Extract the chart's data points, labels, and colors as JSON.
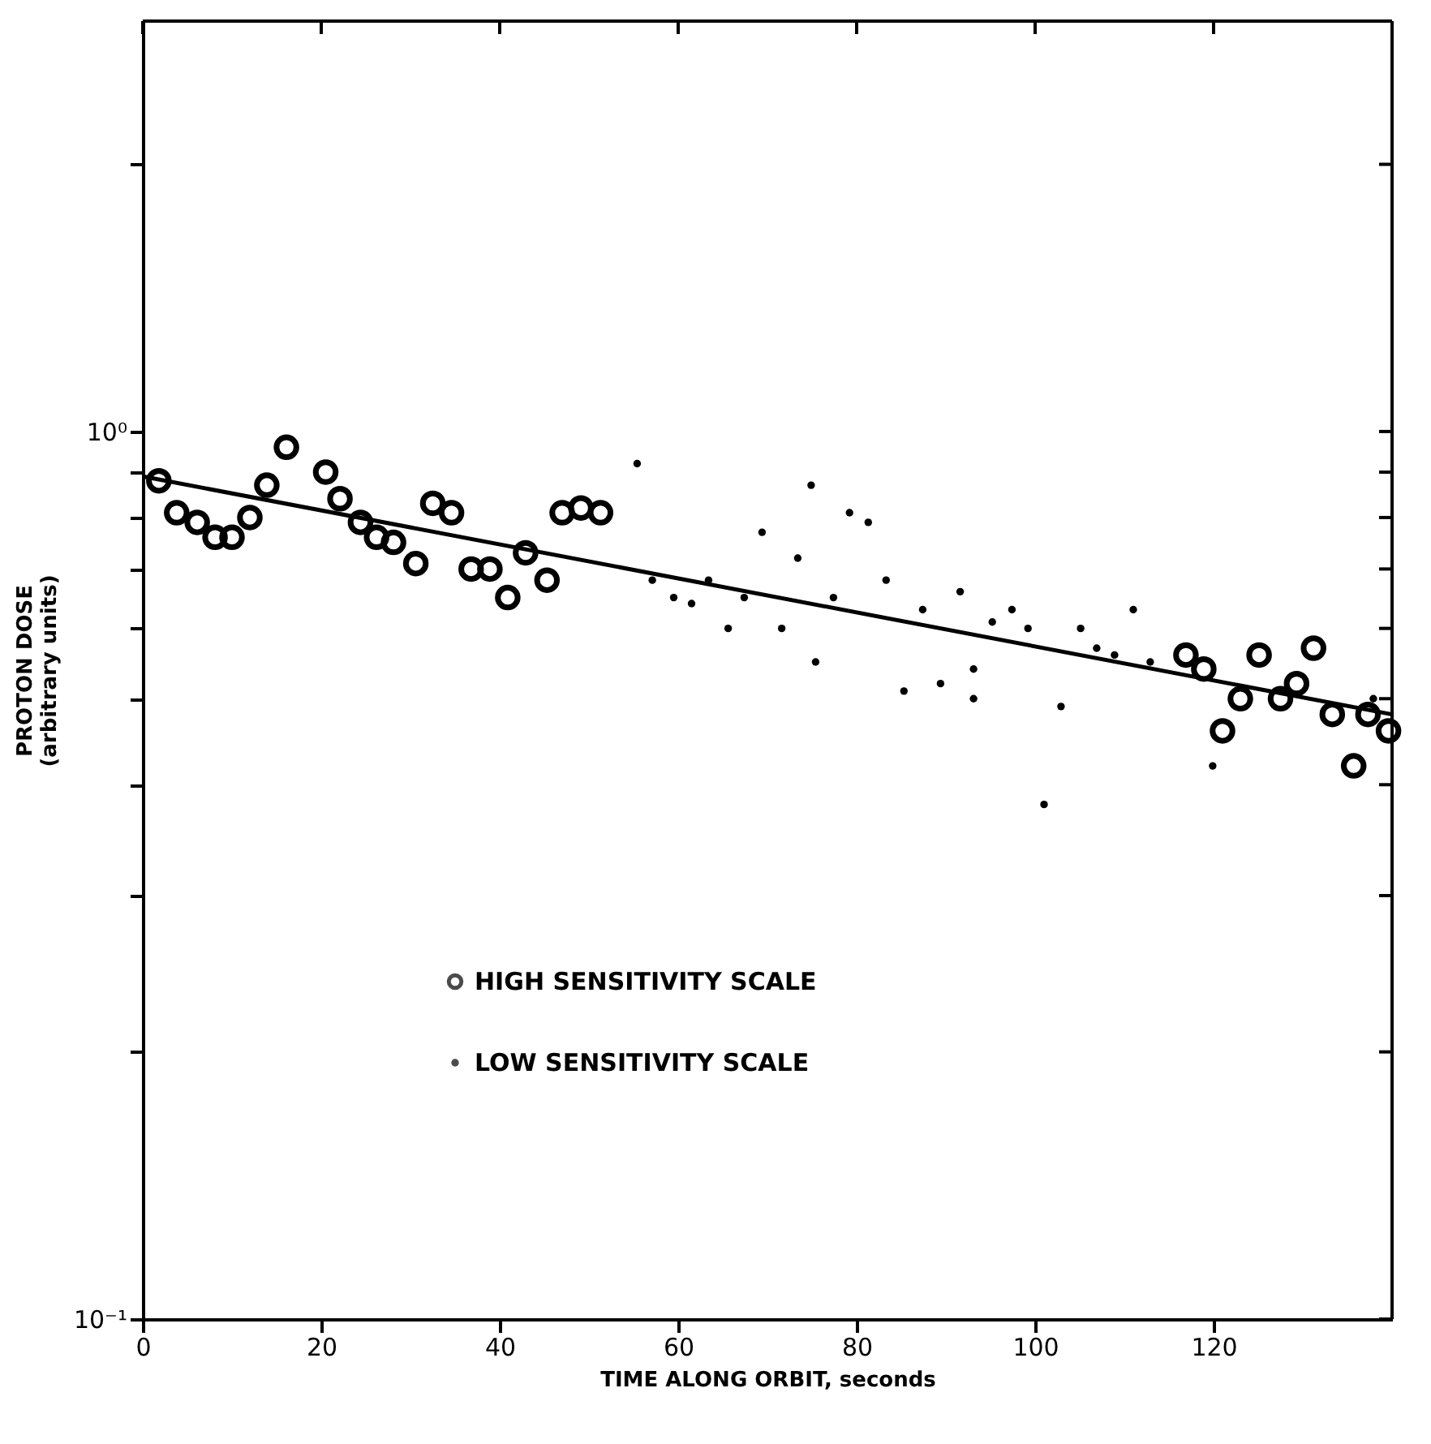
{
  "chart_data": {
    "type": "scatter",
    "xlabel": "TIME ALONG ORBIT, seconds",
    "ylabel": "PROTON DOSE\n(arbitrary units)",
    "log": "y",
    "grid": false,
    "legend": "bottom left",
    "xlim": [
      0,
      140
    ],
    "xticks": [
      0,
      20,
      40,
      60,
      80,
      100,
      120
    ],
    "ylim": [
      0.1,
      2.9
    ],
    "yticks": [
      {
        "value": 0.1,
        "label": "10⁻¹"
      },
      {
        "value": 0.2,
        "label": null
      },
      {
        "value": 0.3,
        "label": null
      },
      {
        "value": 0.4,
        "label": null
      },
      {
        "value": 0.5,
        "label": null
      },
      {
        "value": 0.6,
        "label": null
      },
      {
        "value": 0.7,
        "label": null
      },
      {
        "value": 0.8,
        "label": null
      },
      {
        "value": 0.9,
        "label": null
      },
      {
        "value": 1,
        "label": "10⁰"
      },
      {
        "value": 2,
        "label": null
      }
    ],
    "series": [
      {
        "name": "HIGH SENSITIVITY SCALE",
        "marker": "circle",
        "color": "#000000",
        "x": [
          1.8,
          3.8,
          6.1,
          8.1,
          10.0,
          12.0,
          13.9,
          16.1,
          20.5,
          22.1,
          24.4,
          26.2,
          28.1,
          30.6,
          32.5,
          34.6,
          36.8,
          38.9,
          40.9,
          42.9,
          45.3,
          47.0,
          49.1,
          51.3,
          116.9,
          118.9,
          121.0,
          123.0,
          125.1,
          127.5,
          129.3,
          131.2,
          133.3,
          135.7,
          137.3,
          139.6
        ],
        "values": [
          0.88,
          0.81,
          0.79,
          0.76,
          0.76,
          0.8,
          0.87,
          0.96,
          0.9,
          0.84,
          0.79,
          0.76,
          0.75,
          0.71,
          0.83,
          0.81,
          0.7,
          0.7,
          0.65,
          0.73,
          0.68,
          0.81,
          0.82,
          0.81,
          0.56,
          0.54,
          0.46,
          0.5,
          0.56,
          0.5,
          0.52,
          0.57,
          0.48,
          0.42,
          0.48,
          0.46
        ]
      },
      {
        "name": "LOW SENSITIVITY SCALE",
        "marker": "circle",
        "color": "#000000",
        "x": [
          55.4,
          57.1,
          59.5,
          61.5,
          63.4,
          65.6,
          67.4,
          69.4,
          71.6,
          73.4,
          74.9,
          75.4,
          77.4,
          79.2,
          81.3,
          83.3,
          85.3,
          87.4,
          89.4,
          91.6,
          93.1,
          93.1,
          95.2,
          97.4,
          99.2,
          101.0,
          102.9,
          105.1,
          106.9,
          108.9,
          111.0,
          112.9,
          119.9,
          137.9
        ],
        "values": [
          0.92,
          0.68,
          0.65,
          0.64,
          0.68,
          0.6,
          0.65,
          0.77,
          0.6,
          0.72,
          0.87,
          0.55,
          0.65,
          0.81,
          0.79,
          0.68,
          0.51,
          0.63,
          0.52,
          0.66,
          0.54,
          0.5,
          0.61,
          0.63,
          0.6,
          0.38,
          0.49,
          0.6,
          0.57,
          0.56,
          0.63,
          0.55,
          0.42,
          0.5
        ]
      },
      {
        "type": "line",
        "color": "#000000",
        "x": [
          0,
          140
        ],
        "values": [
          0.89,
          0.48
        ]
      }
    ]
  }
}
